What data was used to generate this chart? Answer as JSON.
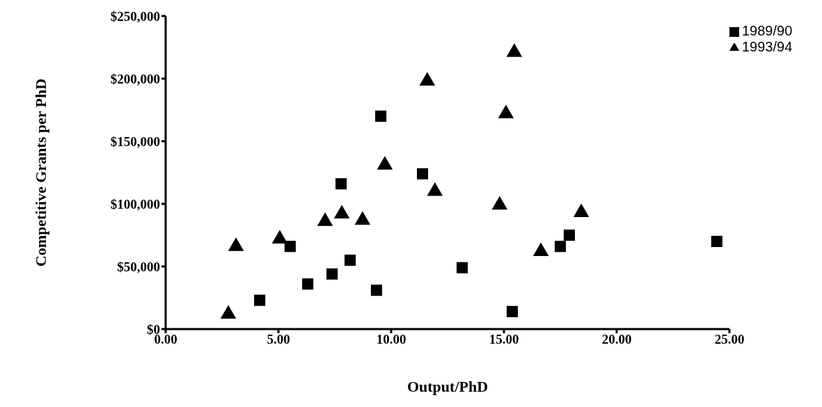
{
  "chart_data": {
    "type": "scatter",
    "xlabel": "Output/PhD",
    "ylabel": "Competitive Grants per PhD",
    "series": [
      {
        "name": "1989/90",
        "color": "#000000",
        "marker": "square",
        "x": [
          4.17,
          5.52,
          6.3,
          7.38,
          7.78,
          8.18,
          9.35,
          9.54,
          11.39,
          13.15,
          15.37,
          17.5,
          17.9,
          24.44
        ],
        "values": [
          23000,
          66000,
          36000,
          44000,
          116000,
          55000,
          31000,
          170000,
          124000,
          49000,
          14000,
          66000,
          75000,
          70000
        ]
      },
      {
        "name": "1993/94",
        "color": "#000000",
        "marker": "triangle",
        "x": [
          2.78,
          3.12,
          5.06,
          7.07,
          7.81,
          8.73,
          9.72,
          11.6,
          11.94,
          14.81,
          15.09,
          15.46,
          16.64,
          18.43
        ],
        "values": [
          12000,
          66000,
          72000,
          86000,
          92000,
          87000,
          131000,
          198000,
          110000,
          99000,
          172000,
          221000,
          62000,
          93000
        ]
      }
    ],
    "xlim": [
      0,
      25
    ],
    "xticks": [
      {
        "value": 0,
        "label": "0.00"
      },
      {
        "value": 5,
        "label": "5.00"
      },
      {
        "value": 10,
        "label": "10.00"
      },
      {
        "value": 15,
        "label": "15.00"
      },
      {
        "value": 20,
        "label": "20.00"
      },
      {
        "value": 25,
        "label": "25.00"
      }
    ],
    "ylim": [
      0,
      250000
    ],
    "yticks": [
      {
        "value": 0,
        "label": "$0"
      },
      {
        "value": 50000,
        "label": "$50,000"
      },
      {
        "value": 100000,
        "label": "$100,000"
      },
      {
        "value": 150000,
        "label": "$150,000"
      },
      {
        "value": 200000,
        "label": "$200,000"
      },
      {
        "value": 250000,
        "label": "$250,000"
      }
    ],
    "grid": false,
    "legend": "top right"
  }
}
